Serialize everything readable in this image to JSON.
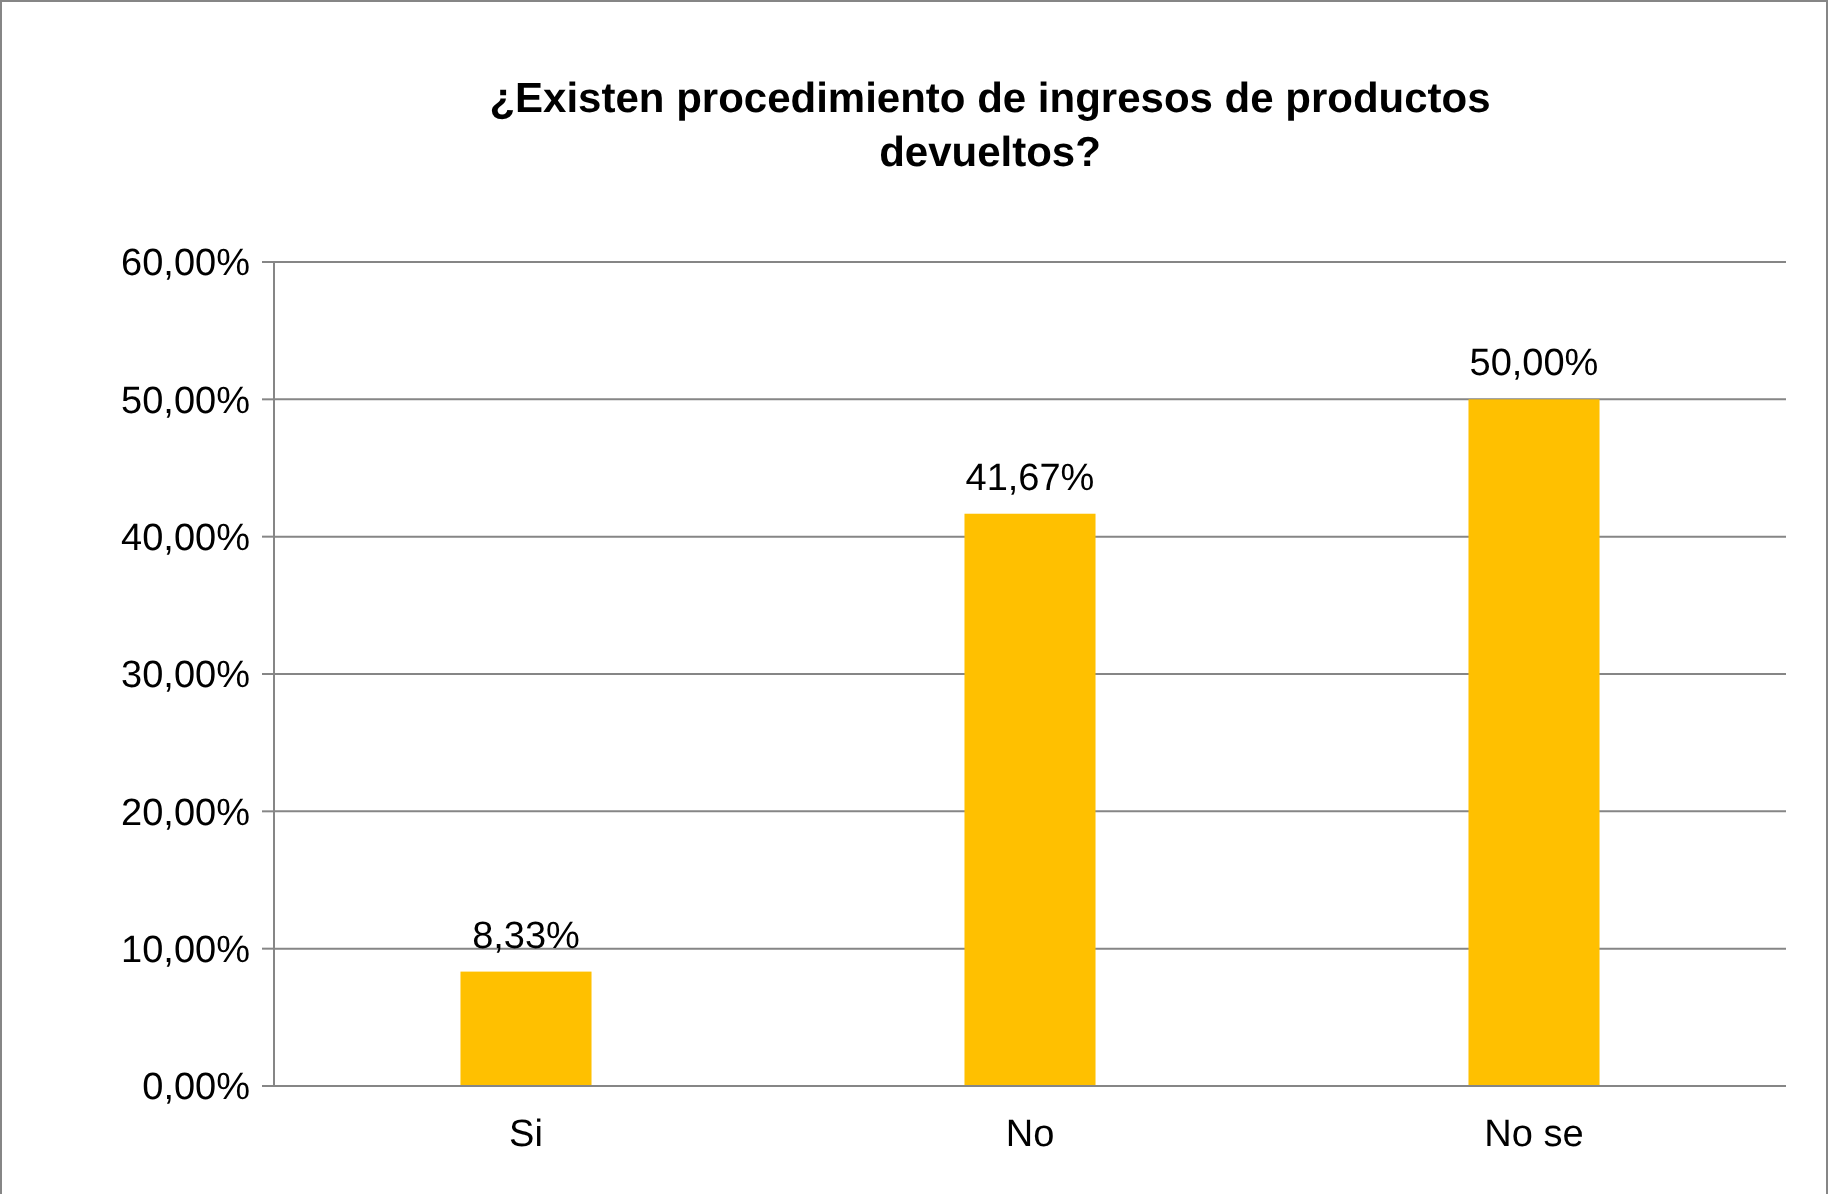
{
  "chart_data": {
    "type": "bar",
    "title": "¿Existen procedimiento de ingresos de productos devueltos?",
    "categories": [
      "Si",
      "No",
      "No se"
    ],
    "values": [
      8.33,
      41.67,
      50
    ],
    "value_labels": [
      "8,33%",
      "41,67%",
      "50,00%"
    ],
    "color": "#ffc000",
    "ylim": [
      0,
      60
    ],
    "yticks": [
      {
        "value": 0,
        "label": "0,00%"
      },
      {
        "value": 10,
        "label": "10,00%"
      },
      {
        "value": 20,
        "label": "20,00%"
      },
      {
        "value": 30,
        "label": "30,00%"
      },
      {
        "value": 40,
        "label": "40,00%"
      },
      {
        "value": 50,
        "label": "50,00%"
      },
      {
        "value": 60,
        "label": "60,00%"
      }
    ],
    "grid": "y"
  }
}
